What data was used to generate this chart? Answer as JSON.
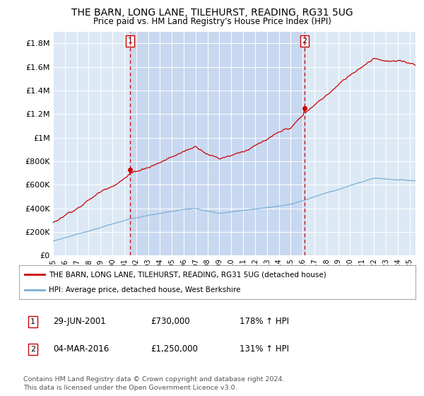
{
  "title": "THE BARN, LONG LANE, TILEHURST, READING, RG31 5UG",
  "subtitle": "Price paid vs. HM Land Registry's House Price Index (HPI)",
  "plot_bg_color": "#dce9f5",
  "fig_bg_color": "#ffffff",
  "highlight_color": "#c8d8f0",
  "hpi_color": "#7bafd4",
  "price_color": "#cc0000",
  "ylim": [
    0,
    1900000
  ],
  "yticks": [
    0,
    200000,
    400000,
    600000,
    800000,
    1000000,
    1200000,
    1400000,
    1600000,
    1800000
  ],
  "ytick_labels": [
    "£0",
    "£200K",
    "£400K",
    "£600K",
    "£800K",
    "£1M",
    "£1.2M",
    "£1.4M",
    "£1.6M",
    "£1.8M"
  ],
  "sale1_date_num": 2001.49,
  "sale1_price": 730000,
  "sale1_label": "1",
  "sale1_date_str": "29-JUN-2001",
  "sale1_pct": "178%",
  "sale2_date_num": 2016.17,
  "sale2_price": 1250000,
  "sale2_label": "2",
  "sale2_date_str": "04-MAR-2016",
  "sale2_pct": "131%",
  "legend_line1": "THE BARN, LONG LANE, TILEHURST, READING, RG31 5UG (detached house)",
  "legend_line2": "HPI: Average price, detached house, West Berkshire",
  "footer": "Contains HM Land Registry data © Crown copyright and database right 2024.\nThis data is licensed under the Open Government Licence v3.0.",
  "xmin": 1995,
  "xmax": 2025.5
}
